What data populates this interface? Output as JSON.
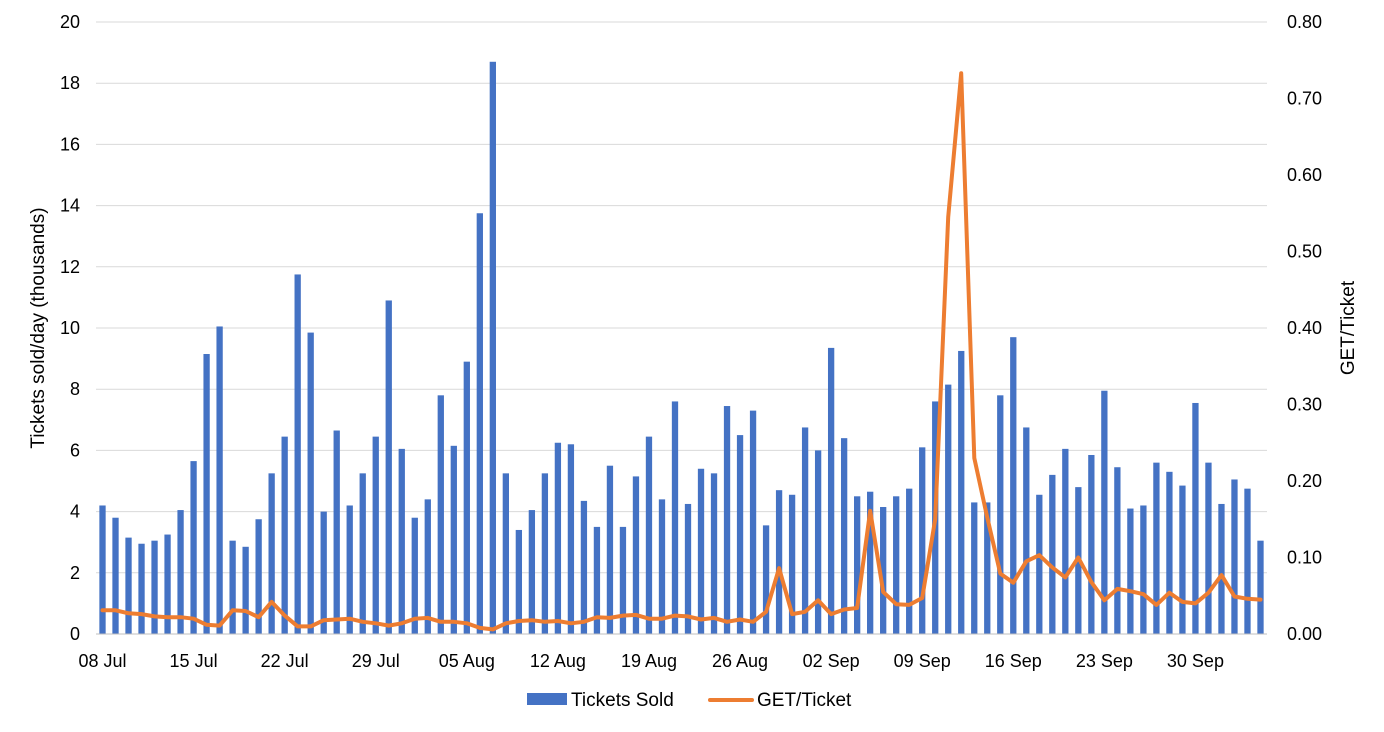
{
  "chart_data": {
    "type": "bar+line",
    "title": "",
    "x_tick_labels": [
      "08 Jul",
      "15 Jul",
      "22 Jul",
      "29 Jul",
      "05 Aug",
      "12 Aug",
      "19 Aug",
      "26 Aug",
      "02 Sep",
      "09 Sep",
      "16 Sep",
      "23 Sep",
      "30 Sep"
    ],
    "y_left": {
      "label": "Tickets sold/day (thousands)",
      "range": [
        0,
        20
      ],
      "ticks": [
        "0",
        "2",
        "4",
        "6",
        "8",
        "10",
        "12",
        "14",
        "16",
        "18",
        "20"
      ]
    },
    "y_right": {
      "label": "GET/Ticket",
      "range": [
        0,
        0.8
      ],
      "ticks": [
        "0.00",
        "0.10",
        "0.20",
        "0.30",
        "0.40",
        "0.50",
        "0.60",
        "0.70",
        "0.80"
      ]
    },
    "grid": true,
    "legend_position": "bottom",
    "series": [
      {
        "name": "Tickets Sold",
        "kind": "bar",
        "axis": "left",
        "color": "#4472C4",
        "values": [
          4.2,
          3.8,
          3.15,
          2.95,
          3.05,
          3.25,
          4.05,
          5.65,
          9.15,
          10.05,
          3.05,
          2.85,
          3.75,
          5.25,
          6.45,
          11.75,
          9.85,
          4.0,
          6.65,
          4.2,
          5.25,
          6.45,
          10.9,
          6.05,
          3.8,
          4.4,
          7.8,
          6.15,
          8.9,
          13.75,
          18.7,
          5.25,
          3.4,
          4.05,
          5.25,
          6.25,
          6.2,
          4.35,
          3.5,
          5.5,
          3.5,
          5.15,
          6.45,
          4.4,
          7.6,
          4.25,
          5.4,
          5.25,
          7.45,
          6.5,
          7.3,
          3.55,
          4.7,
          4.55,
          6.75,
          6.0,
          9.35,
          6.4,
          4.5,
          4.65,
          4.15,
          4.5,
          4.75,
          6.1,
          7.6,
          8.15,
          9.25,
          4.3,
          4.3,
          7.8,
          9.7,
          6.75,
          4.55,
          5.2,
          6.05,
          4.8,
          5.85,
          7.95,
          5.45,
          4.1,
          4.2,
          5.6,
          5.3,
          4.85,
          7.55,
          5.6,
          4.25,
          5.05,
          4.75,
          3.05
        ]
      },
      {
        "name": "GET/Ticket",
        "kind": "line",
        "axis": "right",
        "color": "#ED7D31",
        "values": [
          0.031,
          0.031,
          0.027,
          0.026,
          0.023,
          0.022,
          0.022,
          0.02,
          0.012,
          0.011,
          0.031,
          0.03,
          0.022,
          0.042,
          0.024,
          0.01,
          0.01,
          0.018,
          0.019,
          0.02,
          0.016,
          0.014,
          0.011,
          0.014,
          0.02,
          0.021,
          0.016,
          0.016,
          0.014,
          0.008,
          0.006,
          0.014,
          0.017,
          0.018,
          0.016,
          0.017,
          0.014,
          0.016,
          0.022,
          0.021,
          0.024,
          0.025,
          0.02,
          0.02,
          0.024,
          0.023,
          0.019,
          0.021,
          0.016,
          0.019,
          0.016,
          0.029,
          0.086,
          0.026,
          0.029,
          0.044,
          0.026,
          0.032,
          0.034,
          0.161,
          0.055,
          0.039,
          0.038,
          0.047,
          0.15,
          0.545,
          0.733,
          0.23,
          0.152,
          0.079,
          0.067,
          0.095,
          0.103,
          0.087,
          0.074,
          0.1,
          0.068,
          0.044,
          0.059,
          0.056,
          0.052,
          0.038,
          0.054,
          0.042,
          0.04,
          0.054,
          0.077,
          0.049,
          0.046,
          0.045
        ]
      }
    ]
  }
}
